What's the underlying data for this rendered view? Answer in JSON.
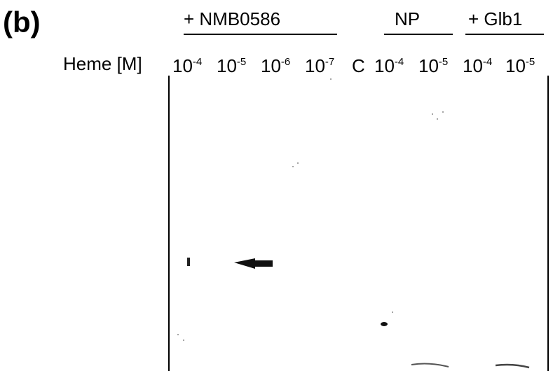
{
  "panel_label": "(b)",
  "groups": [
    "+ NMB0586",
    "NP",
    "+ Glb1"
  ],
  "row_label": "Heme [M]",
  "lanes": [
    {
      "base": "10",
      "exponent": "-4"
    },
    {
      "base": "10",
      "exponent": "-5"
    },
    {
      "base": "10",
      "exponent": "-6"
    },
    {
      "base": "10",
      "exponent": "-7"
    },
    {
      "base": "C"
    },
    {
      "base": "10",
      "exponent": "-4"
    },
    {
      "base": "10",
      "exponent": "-5"
    },
    {
      "base": "10",
      "exponent": "-4"
    },
    {
      "base": "10",
      "exponent": "-5"
    }
  ]
}
